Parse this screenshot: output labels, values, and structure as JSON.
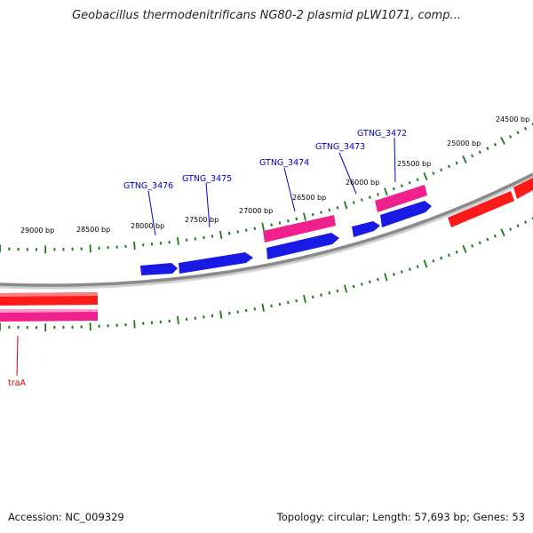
{
  "title": "Geobacillus thermodenitrificans NG80-2 plasmid pLW1071, comp...",
  "footer": {
    "accession_label": "Accession:",
    "accession": "NC_009329",
    "topology_label": "Topology:",
    "topology": "circular",
    "length_label": "Length:",
    "length": "57,693 bp",
    "genes_label": "Genes:",
    "genes": "53"
  },
  "colors": {
    "backbone": "#8a8a8a",
    "tick": "#1a7a1a",
    "forward_cds": "#ff1a1a",
    "reverse_cds": "#1a1ae6",
    "gene_pink": "#f0208c",
    "label_blue": "#0000cc",
    "label_red": "#cc0000"
  },
  "map": {
    "outer_ticks": [
      {
        "bp": 24500,
        "label": "24500 bp"
      },
      {
        "bp": 25000,
        "label": "25000 bp"
      },
      {
        "bp": 25500,
        "label": "25500 bp"
      },
      {
        "bp": 26000,
        "label": "26000 bp"
      },
      {
        "bp": 26500,
        "label": "26500 bp"
      },
      {
        "bp": 27000,
        "label": "27000 bp"
      },
      {
        "bp": 27500,
        "label": "27500 bp"
      },
      {
        "bp": 28000,
        "label": "28000 bp"
      },
      {
        "bp": 28500,
        "label": "28500 bp"
      },
      {
        "bp": 29000,
        "label": "29000 bp"
      }
    ],
    "gene_labels": [
      {
        "name": "GTNG_3472",
        "strand": "reverse"
      },
      {
        "name": "GTNG_3473",
        "strand": "reverse"
      },
      {
        "name": "GTNG_3474",
        "strand": "reverse"
      },
      {
        "name": "GTNG_3475",
        "strand": "reverse"
      },
      {
        "name": "GTNG_3476",
        "strand": "reverse"
      },
      {
        "name": "traA",
        "strand": "forward"
      }
    ]
  }
}
